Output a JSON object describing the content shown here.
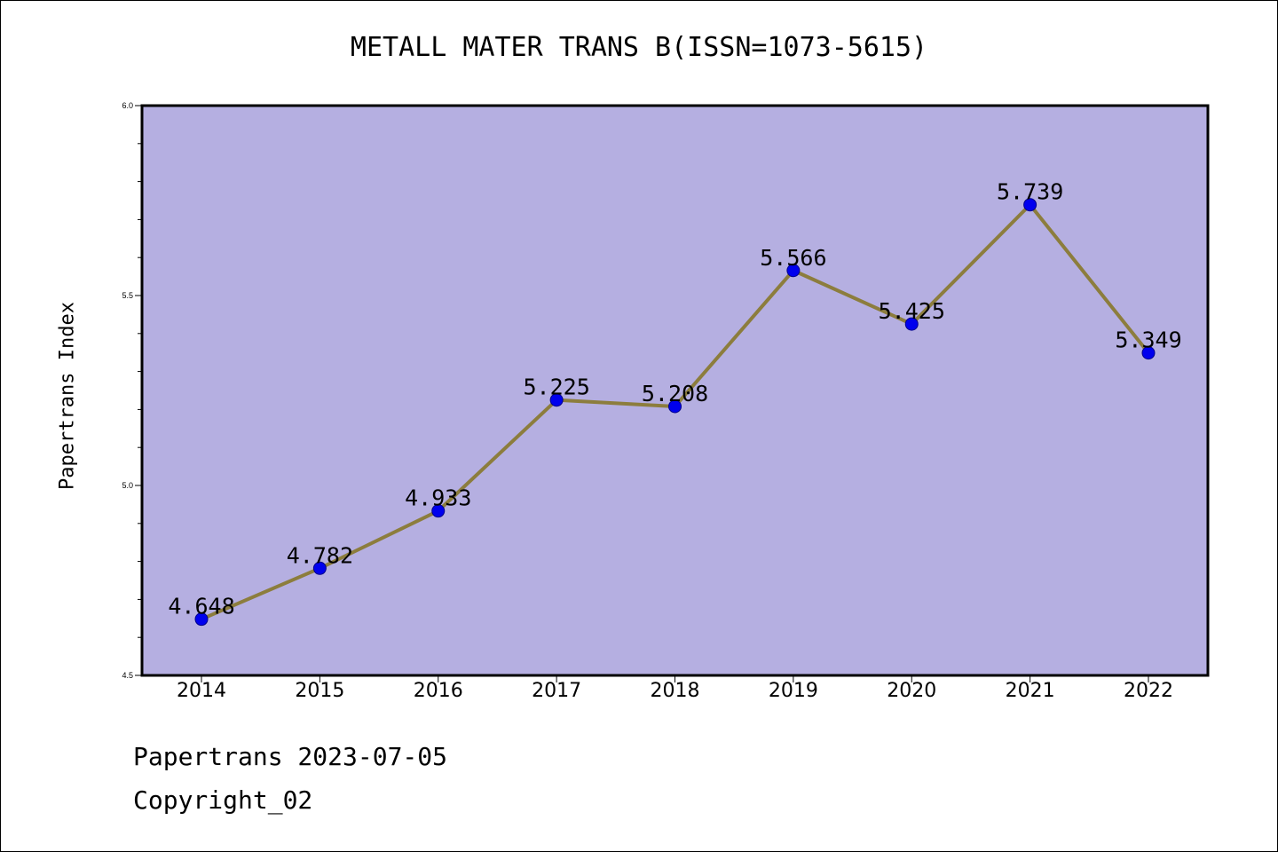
{
  "chart_data": {
    "type": "line",
    "title": "METALL MATER TRANS B(ISSN=1073-5615)",
    "xlabel": "",
    "ylabel": "Papertrans Index",
    "categories": [
      "2014",
      "2015",
      "2016",
      "2017",
      "2018",
      "2019",
      "2020",
      "2021",
      "2022"
    ],
    "series": [
      {
        "values": [
          4.648,
          4.782,
          4.933,
          5.225,
          5.208,
          5.566,
          5.425,
          5.739,
          5.349
        ],
        "labels": [
          "4.648",
          "4.782",
          "4.933",
          "5.225",
          "5.208",
          "5.566",
          "5.425",
          "5.739",
          "5.349"
        ]
      }
    ],
    "ylim": [
      4.5,
      6.0
    ],
    "yticks": [
      "4.5",
      "5.0",
      "5.5",
      "6.0"
    ],
    "grid": false,
    "colors": {
      "plot_background": "#b5afe1",
      "line": "#8c7d3d",
      "marker": "#0000ee"
    }
  },
  "footer": {
    "line1": "Papertrans 2023-07-05",
    "line2": "Copyright_02"
  }
}
